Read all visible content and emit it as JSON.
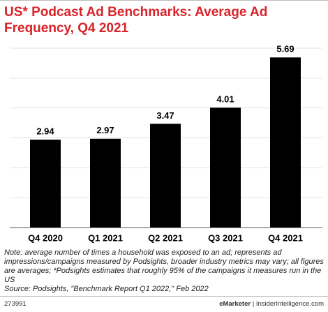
{
  "chart_data": {
    "type": "bar",
    "title": "US* Podcast Ad Benchmarks: Average Ad Frequency, Q4 2021",
    "categories": [
      "Q4 2020",
      "Q1 2021",
      "Q2 2021",
      "Q3 2021",
      "Q4 2021"
    ],
    "values": [
      2.94,
      2.97,
      3.47,
      4.01,
      5.69
    ],
    "color": "#000000",
    "ylim": [
      0,
      6
    ],
    "grid": true
  },
  "footer": {
    "note": "Note: average number of times a household was exposed to an ad; represents ad impressions/campaigns measured by Podsights, broader industry metrics may vary; all figures are averages; *Podsights estimates that roughly 95% of the campaigns it measures run in the US",
    "source": "Source: Podsights, \"Benchmark Report Q1 2022,\" Feb 2022",
    "id": "273991",
    "brand": "eMarketer",
    "separator": "|",
    "site": "InsiderIntelligence.com"
  }
}
